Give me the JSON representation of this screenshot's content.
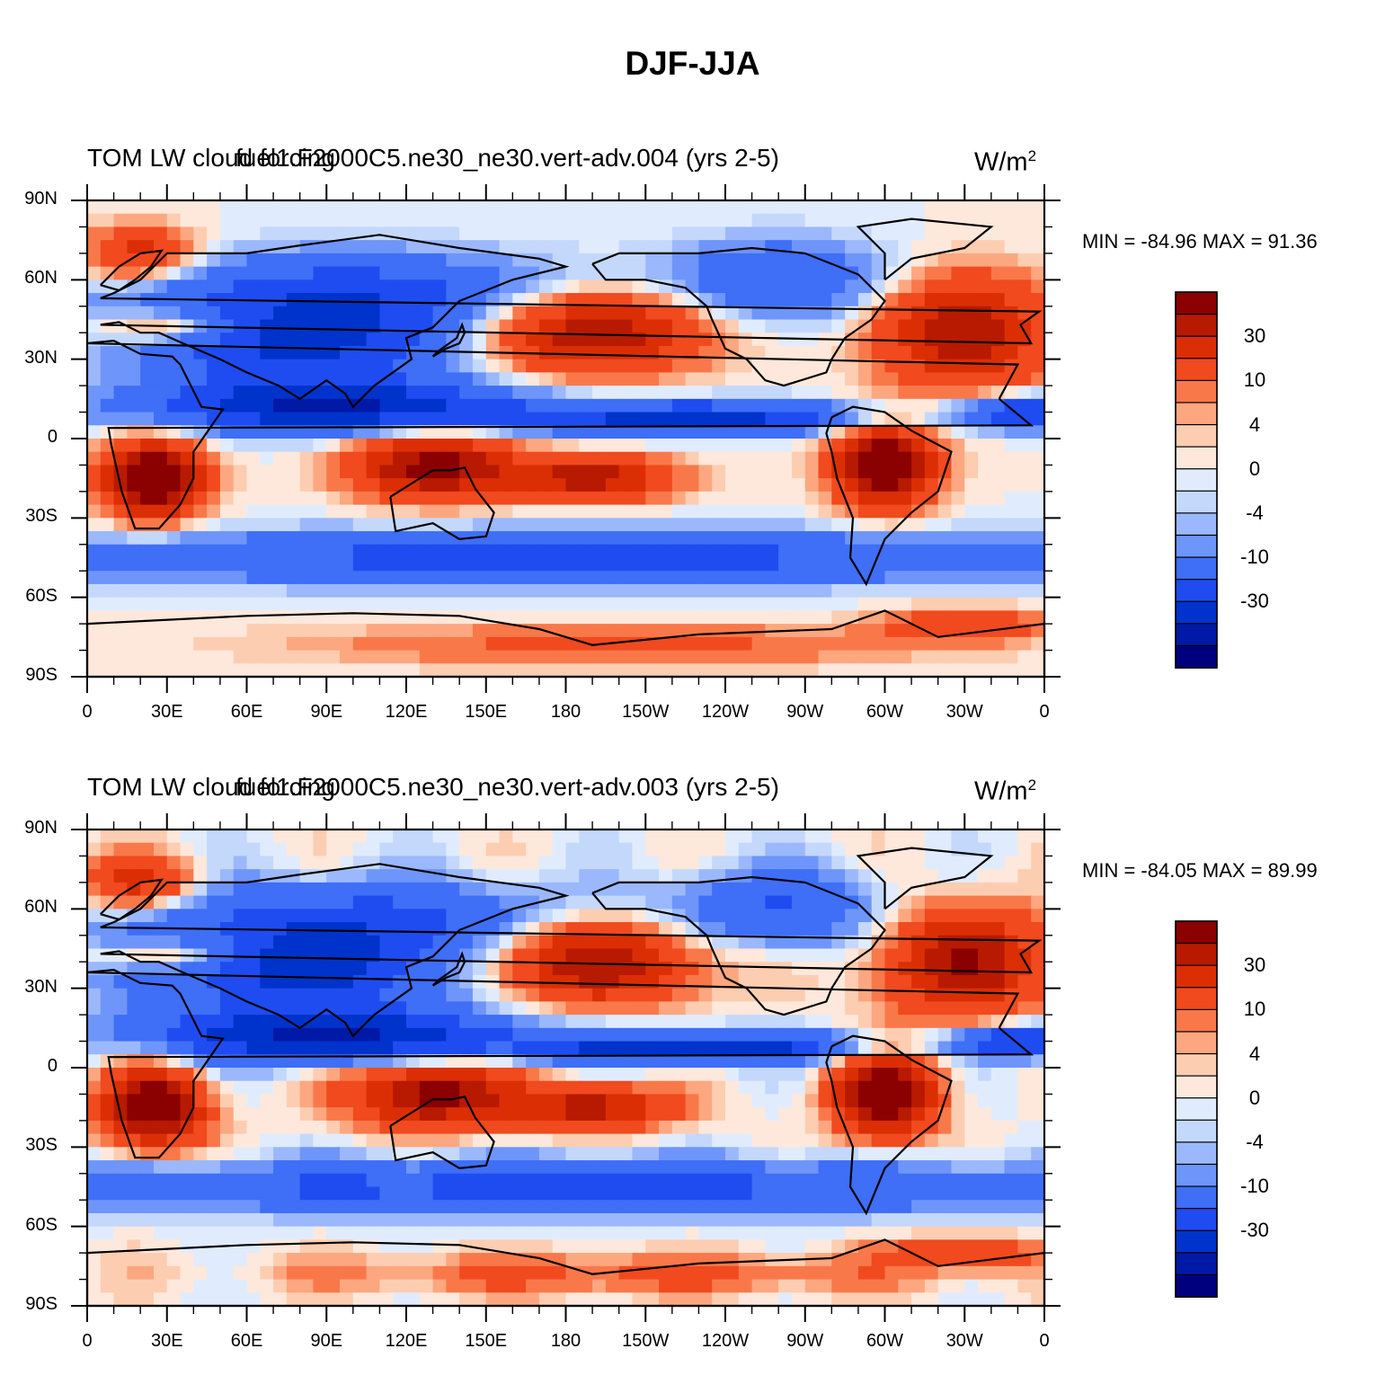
{
  "page": {
    "title": "DJF-JJA"
  },
  "colors": {
    "levels": [
      "#00007f",
      "#0019a6",
      "#0033cc",
      "#1f4cf0",
      "#3f6ef7",
      "#6e95fa",
      "#9ab8fb",
      "#c4d8fc",
      "#e0ecfd",
      "#fde8db",
      "#fdcdb1",
      "#fca77f",
      "#f9784a",
      "#f04a1e",
      "#dc2e05",
      "#b71a00",
      "#8b0000"
    ],
    "coast": "#000000"
  },
  "chart_data": [
    {
      "type": "heatmap",
      "title": "TOM LW cloud forcing",
      "title_overlay": "fuel1.F2000C5.ne30_ne30.vert-adv.004 (yrs 2-5)",
      "units": "W/m",
      "units_sup": "2",
      "minmax_label": "MIN = -84.96 MAX =  91.36",
      "min": -84.96,
      "max": 91.36,
      "x_ticks": [
        "0",
        "30E",
        "60E",
        "90E",
        "120E",
        "150E",
        "180",
        "150W",
        "120W",
        "90W",
        "60W",
        "30W",
        "0"
      ],
      "y_ticks": [
        "90N",
        "60N",
        "30N",
        "0",
        "30S",
        "60S",
        "90S"
      ],
      "xlim": [
        0,
        360
      ],
      "ylim": [
        -90,
        90
      ],
      "colorbar_labels": [
        "30",
        "10",
        "4",
        "0",
        "-4",
        "-10",
        "-30"
      ],
      "colorbar_levels": 17
    },
    {
      "type": "heatmap",
      "title": "TOM LW cloud forcing",
      "title_overlay": "fuel1.F2000C5.ne30_ne30.vert-adv.003 (yrs 2-5)",
      "units": "W/m",
      "units_sup": "2",
      "minmax_label": "MIN = -84.05 MAX =  89.99",
      "min": -84.05,
      "max": 89.99,
      "x_ticks": [
        "0",
        "30E",
        "60E",
        "90E",
        "120E",
        "150E",
        "180",
        "150W",
        "120W",
        "90W",
        "60W",
        "30W",
        "0"
      ],
      "y_ticks": [
        "90N",
        "60N",
        "30N",
        "0",
        "30S",
        "60S",
        "90S"
      ],
      "xlim": [
        0,
        360
      ],
      "ylim": [
        -90,
        90
      ],
      "colorbar_labels": [
        "30",
        "10",
        "4",
        "0",
        "-4",
        "-10",
        "-30"
      ],
      "colorbar_levels": 17
    }
  ]
}
